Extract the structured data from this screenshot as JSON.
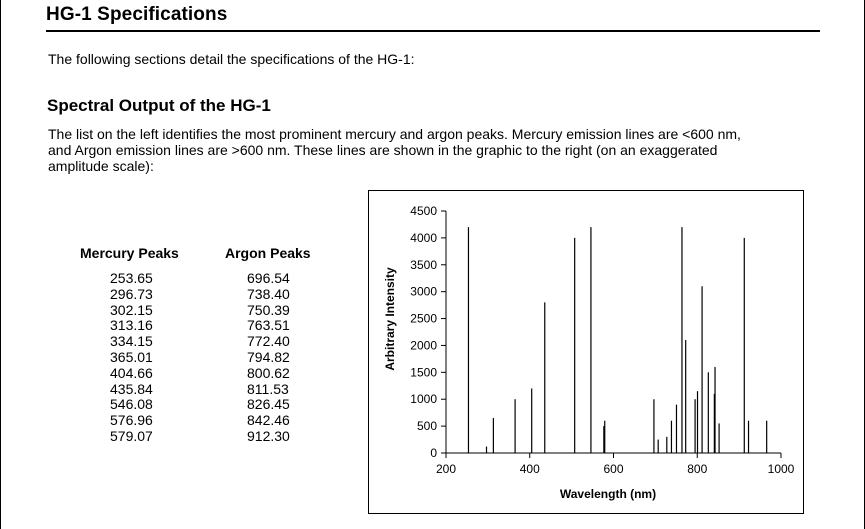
{
  "section": {
    "title": "HG-1 Specifications",
    "intro": "The following sections detail the specifications of the HG-1:"
  },
  "spectral": {
    "title": "Spectral Output of the HG-1",
    "paragraph_lines": [
      "The list on the left identifies the most prominent mercury and argon peaks. Mercury emission lines are <600 nm,",
      "and Argon emission lines are >600 nm. These lines are shown in the graphic to the right (on an exaggerated",
      "amplitude scale):"
    ]
  },
  "peaks_table": {
    "mercury_header": "Mercury Peaks",
    "argon_header": "Argon Peaks",
    "mercury": [
      "253.65",
      "296.73",
      "302.15",
      "313.16",
      "334.15",
      "365.01",
      "404.66",
      "435.84",
      "546.08",
      "576.96",
      "579.07"
    ],
    "argon": [
      "696.54",
      "738.40",
      "750.39",
      "763.51",
      "772.40",
      "794.82",
      "800.62",
      "811.53",
      "826.45",
      "842.46",
      "912.30"
    ]
  },
  "chart_data": {
    "type": "bar",
    "xlabel": "Wavelength (nm)",
    "ylabel": "Arbitrary Intensity",
    "xlim": [
      200,
      1000
    ],
    "ylim": [
      0,
      4500
    ],
    "xticks": [
      200,
      400,
      600,
      800,
      1000
    ],
    "yticks": [
      0,
      500,
      1000,
      1500,
      2000,
      2500,
      3000,
      3500,
      4000,
      4500
    ],
    "grid": false,
    "line_color": "#000000",
    "lines": [
      {
        "x": 253.65,
        "y": 4200
      },
      {
        "x": 296.73,
        "y": 120
      },
      {
        "x": 313.16,
        "y": 650
      },
      {
        "x": 365.01,
        "y": 1000
      },
      {
        "x": 404.66,
        "y": 1200
      },
      {
        "x": 435.84,
        "y": 2800
      },
      {
        "x": 507.3,
        "y": 4000
      },
      {
        "x": 546.08,
        "y": 4200
      },
      {
        "x": 576.96,
        "y": 500
      },
      {
        "x": 579.07,
        "y": 600
      },
      {
        "x": 696.54,
        "y": 1000
      },
      {
        "x": 706.72,
        "y": 250
      },
      {
        "x": 727.29,
        "y": 300
      },
      {
        "x": 738.4,
        "y": 600
      },
      {
        "x": 750.39,
        "y": 900
      },
      {
        "x": 763.51,
        "y": 4200
      },
      {
        "x": 772.4,
        "y": 2100
      },
      {
        "x": 794.82,
        "y": 1000
      },
      {
        "x": 800.62,
        "y": 1150
      },
      {
        "x": 811.53,
        "y": 3100
      },
      {
        "x": 826.45,
        "y": 1500
      },
      {
        "x": 840.82,
        "y": 1100
      },
      {
        "x": 842.46,
        "y": 1600
      },
      {
        "x": 852.14,
        "y": 550
      },
      {
        "x": 912.3,
        "y": 4000
      },
      {
        "x": 922.45,
        "y": 600
      },
      {
        "x": 965.78,
        "y": 600
      }
    ]
  }
}
